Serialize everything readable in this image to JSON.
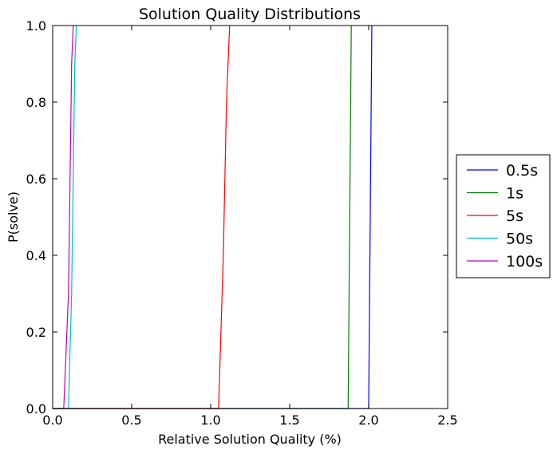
{
  "chart_data": {
    "type": "line",
    "title": "Solution Quality Distributions",
    "xlabel": "Relative Solution Quality (%)",
    "ylabel": "P(solve)",
    "xlim": [
      0.0,
      2.5
    ],
    "ylim": [
      0.0,
      1.0
    ],
    "xticks": [
      "0.0",
      "0.5",
      "1.0",
      "1.5",
      "2.0",
      "2.5"
    ],
    "yticks": [
      "0.0",
      "0.2",
      "0.4",
      "0.6",
      "0.8",
      "1.0"
    ],
    "grid": false,
    "legend_position": "outside right",
    "series": [
      {
        "name": "0.5s",
        "color": "#0000ff",
        "x": [
          0.0,
          2.0,
          2.02
        ],
        "y": [
          0.0,
          0.0,
          1.0
        ]
      },
      {
        "name": "1s",
        "color": "#008000",
        "x": [
          0.0,
          1.87,
          1.89
        ],
        "y": [
          0.0,
          0.0,
          1.0
        ]
      },
      {
        "name": "5s",
        "color": "#ff0000",
        "x": [
          0.0,
          1.05,
          1.08,
          1.09,
          1.1,
          1.12
        ],
        "y": [
          0.0,
          0.0,
          0.4,
          0.6,
          0.8,
          1.0
        ]
      },
      {
        "name": "50s",
        "color": "#00bfbf",
        "x": [
          0.0,
          0.1,
          0.12,
          0.13,
          0.14,
          0.15
        ],
        "y": [
          0.0,
          0.0,
          0.3,
          0.6,
          0.9,
          1.0
        ]
      },
      {
        "name": "100s",
        "color": "#bf00bf",
        "x": [
          0.0,
          0.07,
          0.1,
          0.11,
          0.12,
          0.13
        ],
        "y": [
          0.0,
          0.0,
          0.3,
          0.6,
          0.9,
          1.0
        ]
      }
    ]
  }
}
